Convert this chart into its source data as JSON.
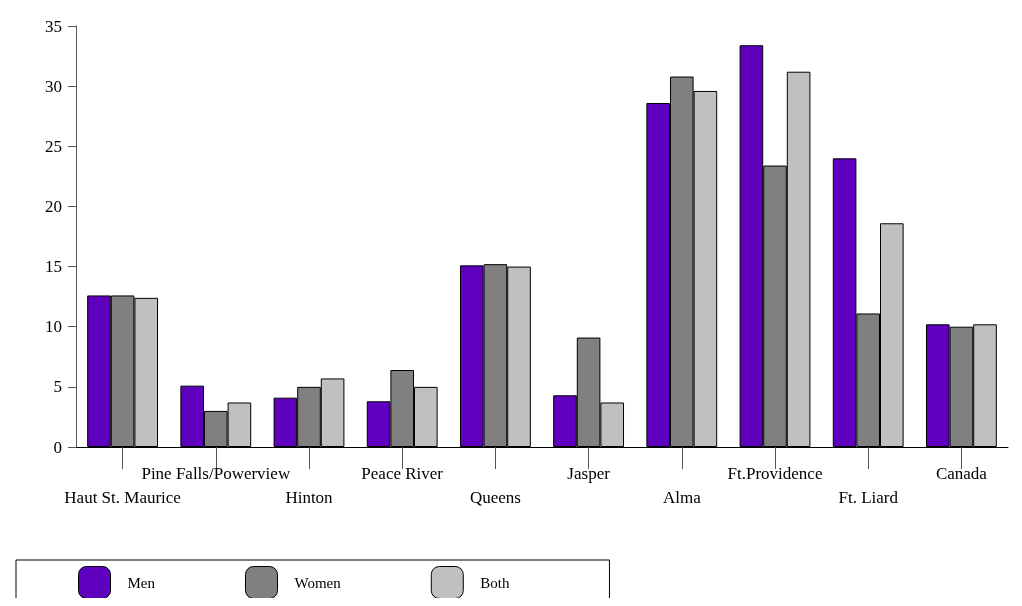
{
  "chart_data": {
    "type": "bar",
    "categories": [
      "Haut St. Maurice",
      "Pine Falls/Powerview",
      "Hinton",
      "Peace River",
      "Queens",
      "Jasper",
      "Alma",
      "Ft.Providence",
      "Ft. Liard",
      "Canada"
    ],
    "series": [
      {
        "name": "Men",
        "color": "#5f00bf",
        "values": [
          12.6,
          5.1,
          4.1,
          3.8,
          15.1,
          4.3,
          28.6,
          33.4,
          24.0,
          10.2
        ]
      },
      {
        "name": "Women",
        "color": "#808080",
        "values": [
          12.6,
          3.0,
          5.0,
          6.4,
          15.2,
          9.1,
          30.8,
          23.4,
          11.1,
          10.0
        ]
      },
      {
        "name": "Both",
        "color": "#c0c0c0",
        "values": [
          12.4,
          3.7,
          5.7,
          5.0,
          15.0,
          3.7,
          29.6,
          31.2,
          18.6,
          10.2
        ]
      }
    ],
    "ylim": [
      0,
      35
    ],
    "yticks": [
      0,
      5,
      10,
      15,
      20,
      25,
      30,
      35
    ],
    "grid": false,
    "legend": "bottom left"
  }
}
